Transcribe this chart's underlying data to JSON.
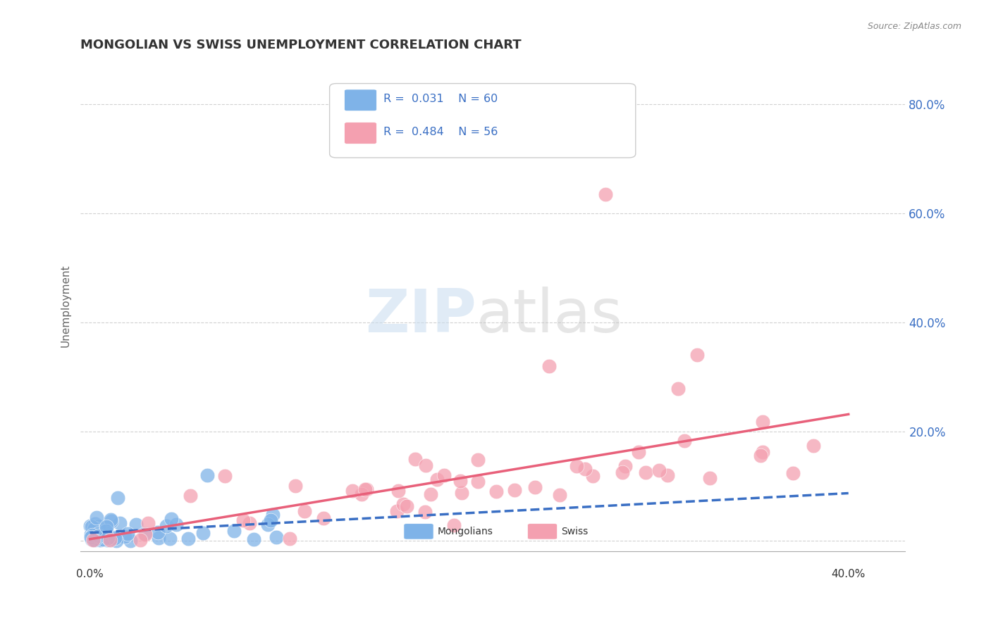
{
  "title": "MONGOLIAN VS SWISS UNEMPLOYMENT CORRELATION CHART",
  "source": "Source: ZipAtlas.com",
  "ylabel": "Unemployment",
  "yticks": [
    0.0,
    0.2,
    0.4,
    0.6,
    0.8
  ],
  "ytick_labels": [
    "",
    "20.0%",
    "40.0%",
    "60.0%",
    "80.0%"
  ],
  "xlim": [
    -0.005,
    0.43
  ],
  "ylim": [
    -0.02,
    0.88
  ],
  "blue_color": "#7FB3E8",
  "pink_color": "#F4A0B0",
  "trend_blue_color": "#3A6FC4",
  "trend_pink_color": "#E8607A",
  "background_color": "#FFFFFF",
  "grid_color": "#CCCCCC",
  "tick_color": "#3A6FC4",
  "title_color": "#333333",
  "source_color": "#888888"
}
